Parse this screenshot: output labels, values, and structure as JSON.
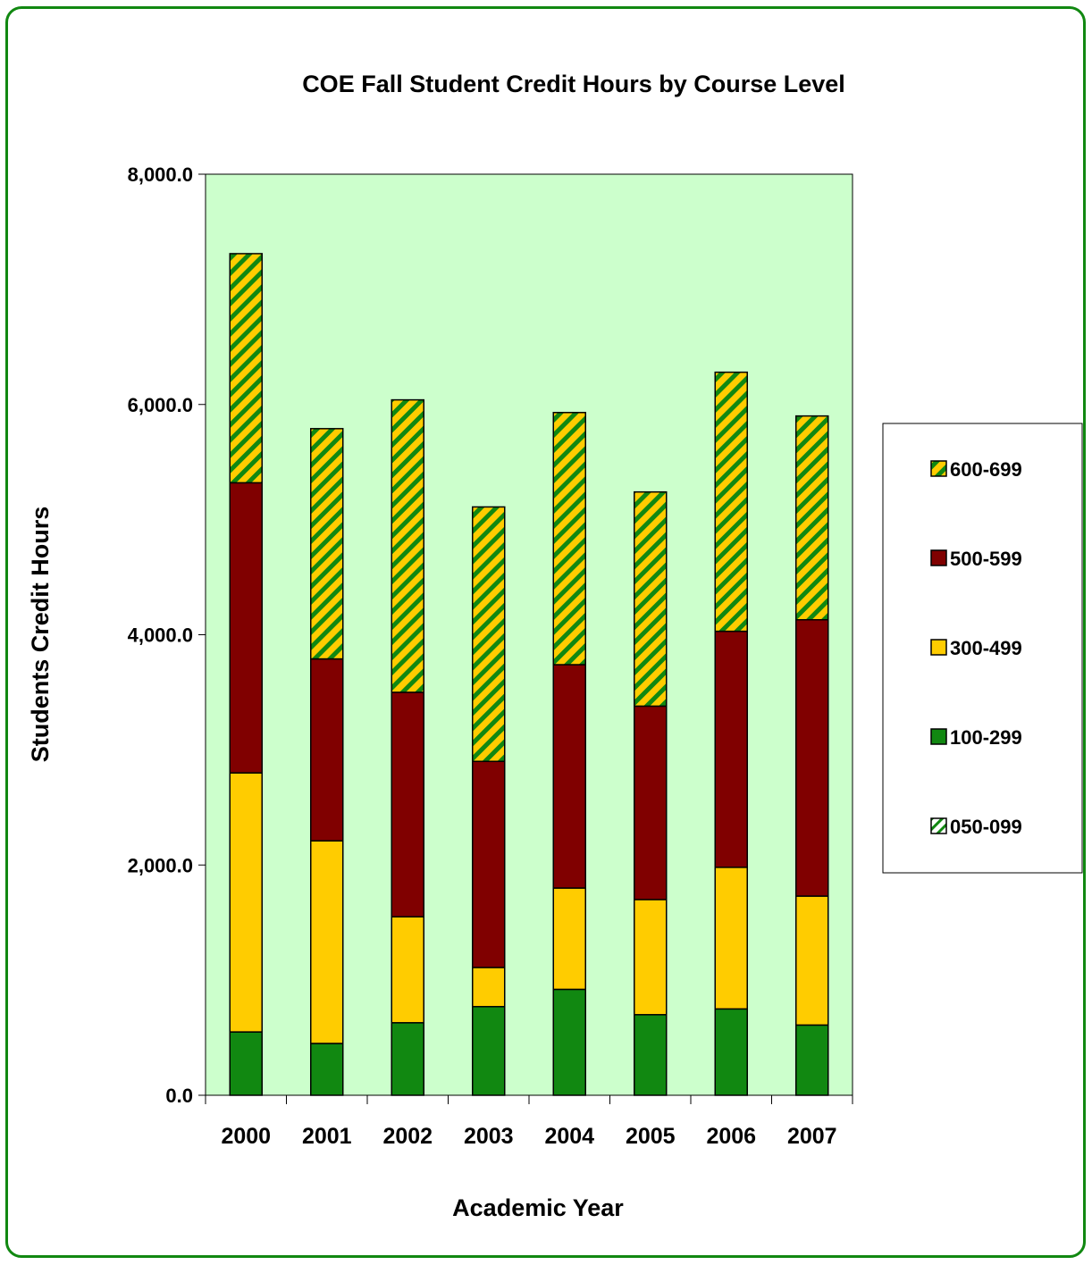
{
  "chart_data": {
    "type": "bar",
    "stacked": true,
    "title": "COE Fall Student Credit Hours by Course Level",
    "xlabel": "Academic Year",
    "ylabel": "Students Credit Hours",
    "ylim": [
      0,
      8000
    ],
    "yticks": [
      0,
      2000,
      4000,
      6000,
      8000
    ],
    "ytick_labels": [
      "0.0",
      "2,000.0",
      "4,000.0",
      "6,000.0",
      "8,000.0"
    ],
    "categories": [
      "2000",
      "2001",
      "2002",
      "2003",
      "2004",
      "2005",
      "2006",
      "2007"
    ],
    "grid": false,
    "legend_position": "right",
    "plot_background": "#ccffcc",
    "series": [
      {
        "name": "050-099",
        "color": "#ffffff",
        "pattern": "hatch",
        "values": [
          0,
          0,
          0,
          0,
          0,
          0,
          0,
          0
        ]
      },
      {
        "name": "100-299",
        "color": "#118811",
        "values": [
          550,
          450,
          630,
          770,
          920,
          700,
          750,
          610
        ]
      },
      {
        "name": "300-499",
        "color": "#ffcc00",
        "values": [
          2250,
          1760,
          920,
          340,
          880,
          1000,
          1230,
          1120
        ]
      },
      {
        "name": "500-599",
        "color": "#800000",
        "values": [
          2520,
          1580,
          1950,
          1790,
          1940,
          1680,
          2050,
          2400
        ]
      },
      {
        "name": "600-699",
        "color": "#ffcc00",
        "pattern": "hatch",
        "hatch_color": "#118811",
        "values": [
          1990,
          2000,
          2540,
          2210,
          2190,
          1860,
          2250,
          1770
        ]
      }
    ]
  }
}
